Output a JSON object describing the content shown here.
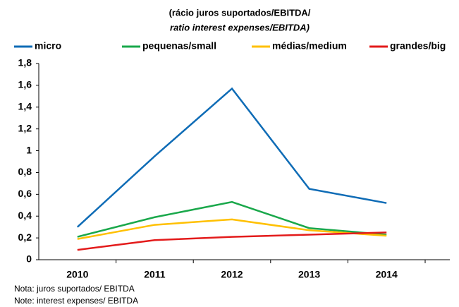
{
  "chart_data": {
    "type": "line",
    "title": "(rácio juros suportados/EBITDA/",
    "subtitle": "ratio interest expenses/EBITDA)",
    "categories": [
      "2010",
      "2011",
      "2012",
      "2013",
      "2014"
    ],
    "series": [
      {
        "name": "micro",
        "color": "#0f6cb6",
        "values": [
          0.3,
          0.95,
          1.57,
          0.65,
          0.52
        ]
      },
      {
        "name": "pequenas/small",
        "color": "#1aa84b",
        "values": [
          0.21,
          0.39,
          0.53,
          0.29,
          0.23
        ]
      },
      {
        "name": "médias/medium",
        "color": "#ffc000",
        "values": [
          0.19,
          0.32,
          0.37,
          0.27,
          0.22
        ]
      },
      {
        "name": "grandes/big",
        "color": "#e31b1b",
        "values": [
          0.09,
          0.18,
          0.21,
          0.23,
          0.25
        ]
      }
    ],
    "ylim": [
      0,
      1.8
    ],
    "yticks": [
      0,
      {
        "value": 0.2,
        "label": "0,2"
      },
      {
        "value": 0.4,
        "label": "0,4"
      },
      {
        "value": 0.6,
        "label": "0,6"
      },
      {
        "value": 0.8,
        "label": "0,8"
      },
      1,
      {
        "value": 1.2,
        "label": "1,2"
      },
      {
        "value": 1.4,
        "label": "1,4"
      },
      {
        "value": 1.6,
        "label": "1,6"
      },
      {
        "value": 1.8,
        "label": "1,8"
      }
    ],
    "legend": "top",
    "notes": [
      "Nota: juros suportados/ EBITDA",
      "Note: interest expenses/ EBITDA"
    ]
  }
}
